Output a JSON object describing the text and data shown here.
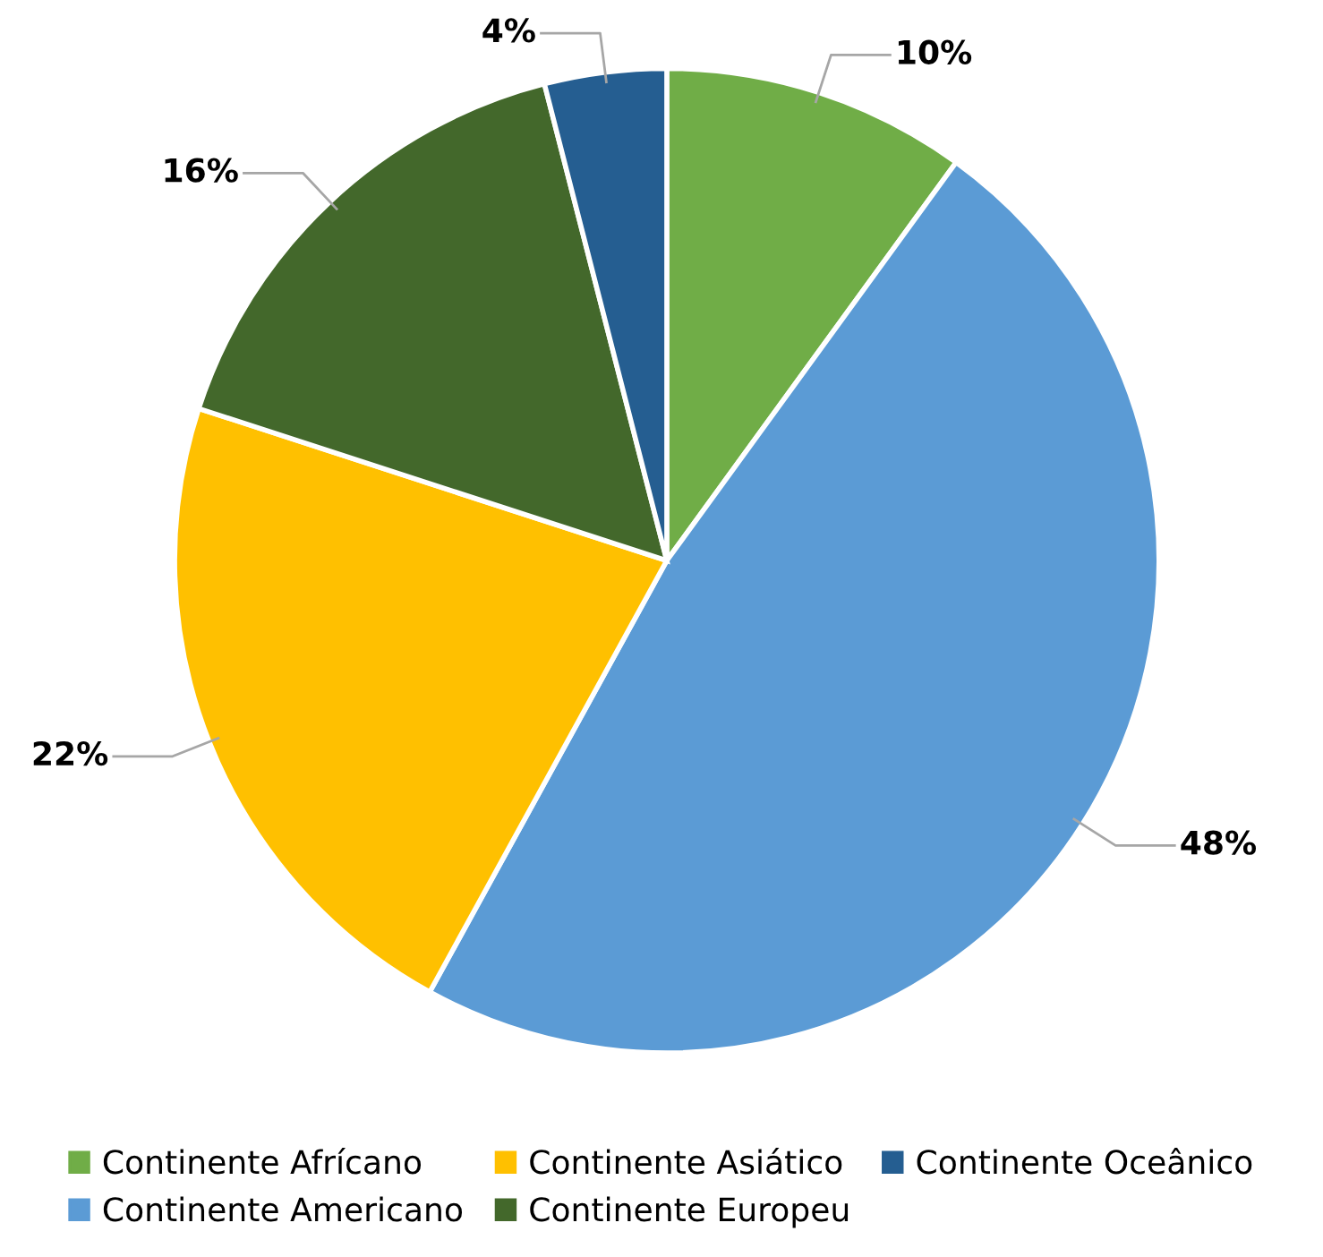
{
  "chart_data": {
    "type": "pie",
    "categories": [
      "Continente Afrícano",
      "Continente Americano",
      "Continente Asiático",
      "Continente Europeu",
      "Continente Oceânico"
    ],
    "values": [
      10,
      48,
      22,
      16,
      4
    ],
    "colors": [
      "#70ad47",
      "#5b9bd5",
      "#ffc000",
      "#43682b",
      "#255e91"
    ],
    "value_labels": [
      "10%",
      "48%",
      "22%",
      "16%",
      "4%"
    ],
    "legend": "bottom"
  }
}
